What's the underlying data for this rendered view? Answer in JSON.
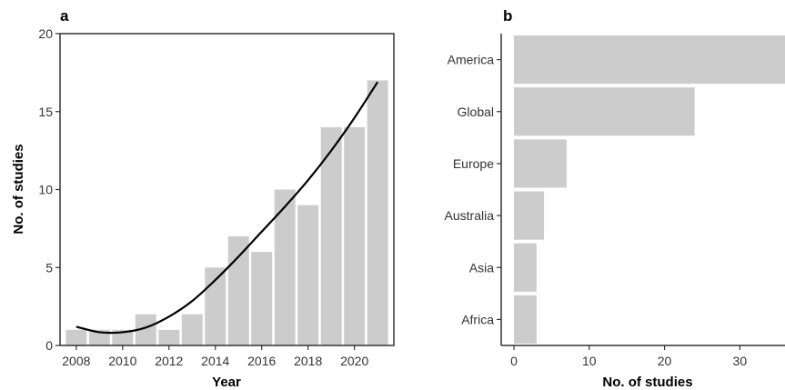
{
  "chart_data": [
    {
      "type": "bar",
      "panel_label": "a",
      "xlabel": "Year",
      "ylabel": "No. of studies",
      "ylim": [
        0,
        20
      ],
      "yticks": [
        0,
        5,
        10,
        15,
        20
      ],
      "xticks": [
        2008,
        2010,
        2012,
        2014,
        2016,
        2018,
        2020
      ],
      "grid": false,
      "bar_color": "#cccccc",
      "x": [
        2008,
        2009,
        2010,
        2011,
        2012,
        2013,
        2014,
        2015,
        2016,
        2017,
        2018,
        2019,
        2020,
        2021
      ],
      "values": [
        1,
        1,
        1,
        2,
        1,
        2,
        5,
        7,
        6,
        10,
        9,
        14,
        14,
        17
      ],
      "trend_line": {
        "color": "#000000",
        "x": [
          2008,
          2009,
          2010,
          2011,
          2012,
          2013,
          2014,
          2015,
          2016,
          2017,
          2018,
          2019,
          2020,
          2021
        ],
        "y": [
          1.2,
          0.85,
          0.85,
          1.15,
          1.85,
          2.85,
          4.2,
          5.7,
          7.3,
          8.9,
          10.6,
          12.5,
          14.6,
          16.9
        ]
      }
    },
    {
      "type": "bar",
      "orientation": "horizontal",
      "panel_label": "b",
      "xlabel": "No. of studies",
      "ylabel": "",
      "xlim": [
        0,
        36
      ],
      "xticks": [
        0,
        10,
        20,
        30
      ],
      "grid": false,
      "bar_color": "#cccccc",
      "categories": [
        "America",
        "Global",
        "Europe",
        "Australia",
        "Asia",
        "Africa"
      ],
      "values": [
        36,
        24,
        7,
        4,
        3,
        3
      ]
    }
  ]
}
